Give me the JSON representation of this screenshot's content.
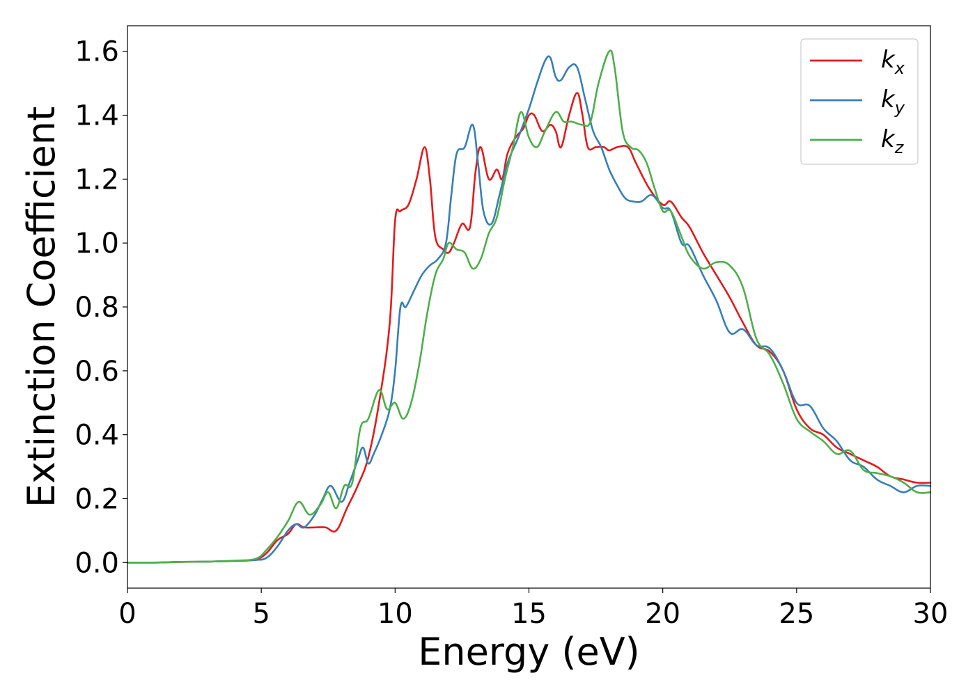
{
  "colors": {
    "kx": "#e41a1c",
    "ky": "#377eb8",
    "kz": "#4daf4a",
    "frame": "#000000",
    "legend_border": "#cccccc"
  },
  "chart_data": {
    "type": "line",
    "title": "",
    "xlabel": "Energy (eV)",
    "ylabel": "Extinction Coefficient",
    "xlim": [
      0,
      30
    ],
    "ylim": [
      -0.08,
      1.68
    ],
    "xticks": [
      0,
      5,
      10,
      15,
      20,
      25,
      30
    ],
    "yticks": [
      0.0,
      0.2,
      0.4,
      0.6,
      0.8,
      1.0,
      1.2,
      1.4,
      1.6
    ],
    "grid": false,
    "legend_position": "top-right",
    "series": [
      {
        "name": "k_x",
        "label_base": "k",
        "label_sub": "x",
        "color_key": "kx",
        "x": [
          0,
          1,
          2,
          3,
          4,
          4.8,
          5.2,
          5.6,
          6.0,
          6.3,
          6.6,
          7.0,
          7.4,
          7.8,
          8.2,
          8.6,
          9.0,
          9.4,
          9.8,
          10.0,
          10.2,
          10.5,
          10.8,
          11.1,
          11.3,
          11.5,
          11.8,
          12.0,
          12.2,
          12.5,
          12.8,
          13.0,
          13.2,
          13.5,
          13.8,
          14.0,
          14.2,
          14.5,
          14.8,
          15.0,
          15.2,
          15.5,
          15.8,
          16.0,
          16.2,
          16.5,
          16.8,
          17.0,
          17.2,
          17.5,
          17.8,
          18.0,
          18.3,
          18.7,
          19.0,
          19.5,
          20.0,
          20.3,
          20.7,
          21.0,
          21.5,
          22.0,
          22.5,
          23.0,
          23.5,
          24.0,
          24.5,
          25.0,
          25.5,
          26.0,
          26.5,
          27.0,
          27.5,
          28.0,
          28.5,
          29.0,
          29.5,
          30.0
        ],
        "y": [
          0.0,
          0.0,
          0.002,
          0.003,
          0.005,
          0.01,
          0.03,
          0.07,
          0.09,
          0.12,
          0.11,
          0.11,
          0.11,
          0.1,
          0.17,
          0.24,
          0.33,
          0.5,
          0.75,
          1.07,
          1.1,
          1.12,
          1.2,
          1.3,
          1.2,
          1.02,
          0.98,
          0.97,
          1.0,
          1.06,
          1.05,
          1.22,
          1.3,
          1.2,
          1.23,
          1.2,
          1.28,
          1.33,
          1.36,
          1.4,
          1.4,
          1.35,
          1.37,
          1.35,
          1.3,
          1.4,
          1.47,
          1.4,
          1.3,
          1.3,
          1.3,
          1.29,
          1.3,
          1.3,
          1.25,
          1.17,
          1.12,
          1.13,
          1.08,
          1.05,
          0.97,
          0.9,
          0.83,
          0.75,
          0.68,
          0.66,
          0.6,
          0.48,
          0.42,
          0.4,
          0.36,
          0.34,
          0.32,
          0.3,
          0.27,
          0.26,
          0.25,
          0.25
        ]
      },
      {
        "name": "k_y",
        "label_base": "k",
        "label_sub": "y",
        "color_key": "ky",
        "x": [
          0,
          1,
          2,
          3,
          4,
          4.8,
          5.2,
          5.6,
          6.0,
          6.3,
          6.6,
          7.0,
          7.3,
          7.6,
          8.0,
          8.3,
          8.6,
          8.8,
          9.0,
          9.2,
          9.5,
          9.8,
          10.0,
          10.2,
          10.4,
          10.7,
          11.0,
          11.3,
          11.6,
          11.9,
          12.1,
          12.3,
          12.6,
          12.9,
          13.1,
          13.3,
          13.6,
          13.9,
          14.2,
          14.6,
          15.0,
          15.3,
          15.6,
          15.8,
          16.0,
          16.2,
          16.5,
          16.8,
          17.1,
          17.4,
          17.7,
          18.0,
          18.3,
          18.6,
          18.9,
          19.2,
          19.6,
          20.0,
          20.3,
          20.7,
          21.0,
          21.5,
          22.0,
          22.5,
          23.0,
          23.5,
          24.0,
          24.5,
          25.0,
          25.5,
          26.0,
          26.5,
          27.0,
          27.5,
          28.0,
          28.5,
          29.0,
          29.5,
          30.0
        ],
        "y": [
          0.0,
          0.0,
          0.002,
          0.003,
          0.005,
          0.008,
          0.015,
          0.05,
          0.1,
          0.12,
          0.11,
          0.15,
          0.2,
          0.24,
          0.19,
          0.25,
          0.32,
          0.36,
          0.31,
          0.34,
          0.4,
          0.48,
          0.6,
          0.8,
          0.8,
          0.85,
          0.9,
          0.93,
          0.95,
          1.0,
          1.15,
          1.28,
          1.3,
          1.37,
          1.25,
          1.1,
          1.06,
          1.15,
          1.25,
          1.33,
          1.42,
          1.5,
          1.57,
          1.58,
          1.52,
          1.51,
          1.55,
          1.55,
          1.45,
          1.35,
          1.3,
          1.23,
          1.18,
          1.14,
          1.13,
          1.13,
          1.15,
          1.11,
          1.1,
          1.0,
          0.99,
          0.9,
          0.82,
          0.72,
          0.73,
          0.68,
          0.67,
          0.6,
          0.5,
          0.49,
          0.42,
          0.38,
          0.32,
          0.3,
          0.26,
          0.24,
          0.22,
          0.24,
          0.24
        ]
      },
      {
        "name": "k_z",
        "label_base": "k",
        "label_sub": "z",
        "color_key": "kz",
        "x": [
          0,
          1,
          2,
          3,
          4,
          4.8,
          5.2,
          5.6,
          6.0,
          6.4,
          6.8,
          7.2,
          7.5,
          7.8,
          8.1,
          8.4,
          8.7,
          9.0,
          9.4,
          9.7,
          10.0,
          10.3,
          10.6,
          10.9,
          11.2,
          11.5,
          11.8,
          12.0,
          12.3,
          12.6,
          12.9,
          13.2,
          13.5,
          13.8,
          14.1,
          14.4,
          14.7,
          15.0,
          15.3,
          15.6,
          16.0,
          16.3,
          16.6,
          17.0,
          17.3,
          17.6,
          18.0,
          18.2,
          18.5,
          18.8,
          19.1,
          19.4,
          19.7,
          20.0,
          20.3,
          20.7,
          21.0,
          21.5,
          22.0,
          22.5,
          23.0,
          23.5,
          24.0,
          24.5,
          25.0,
          25.5,
          26.0,
          26.5,
          27.0,
          27.5,
          28.0,
          28.5,
          29.0,
          29.5,
          30.0
        ],
        "y": [
          0.0,
          0.0,
          0.002,
          0.003,
          0.006,
          0.012,
          0.04,
          0.08,
          0.13,
          0.19,
          0.15,
          0.18,
          0.22,
          0.17,
          0.24,
          0.25,
          0.42,
          0.45,
          0.54,
          0.48,
          0.5,
          0.45,
          0.5,
          0.62,
          0.78,
          0.9,
          0.95,
          1.0,
          0.98,
          0.97,
          0.92,
          0.95,
          1.03,
          1.08,
          1.2,
          1.3,
          1.41,
          1.33,
          1.3,
          1.35,
          1.41,
          1.38,
          1.38,
          1.37,
          1.38,
          1.5,
          1.6,
          1.55,
          1.35,
          1.3,
          1.29,
          1.25,
          1.17,
          1.1,
          1.1,
          1.02,
          0.96,
          0.92,
          0.94,
          0.93,
          0.86,
          0.7,
          0.65,
          0.56,
          0.45,
          0.41,
          0.38,
          0.34,
          0.35,
          0.29,
          0.28,
          0.27,
          0.25,
          0.22,
          0.22
        ]
      }
    ]
  }
}
